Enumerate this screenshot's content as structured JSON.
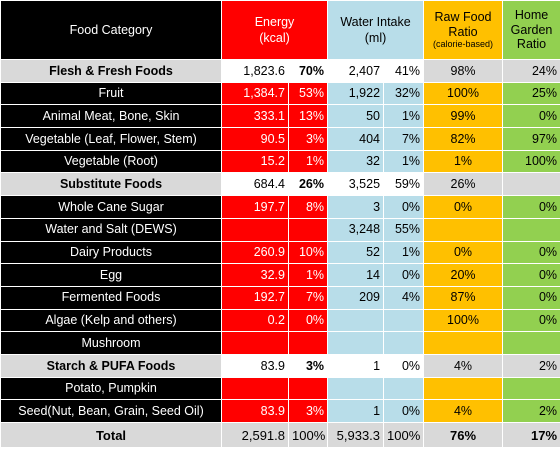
{
  "headers": {
    "category": "Food Category",
    "energy_line1": "Energy",
    "energy_line2": "(kcal)",
    "water_line1": "Water Intake",
    "water_line2": "(ml)",
    "raw_line1": "Raw Food",
    "raw_line2": "Ratio",
    "raw_line3": "(calorie-based)",
    "garden_line1": "Home",
    "garden_line2": "Garden",
    "garden_line3": "Ratio"
  },
  "rows": [
    {
      "type": "group",
      "name": "Flesh & Fresh Foods",
      "energy": "1,823.6",
      "energy_pct": "70%",
      "water": "2,407",
      "water_pct": "41%",
      "raw": "98%",
      "garden": "24%"
    },
    {
      "type": "item",
      "name": "Fruit",
      "energy": "1,384.7",
      "energy_pct": "53%",
      "water": "1,922",
      "water_pct": "32%",
      "raw": "100%",
      "garden": "25%"
    },
    {
      "type": "item",
      "name": "Animal Meat, Bone, Skin",
      "energy": "333.1",
      "energy_pct": "13%",
      "water": "50",
      "water_pct": "1%",
      "raw": "99%",
      "garden": "0%"
    },
    {
      "type": "item",
      "name": "Vegetable (Leaf, Flower, Stem)",
      "energy": "90.5",
      "energy_pct": "3%",
      "water": "404",
      "water_pct": "7%",
      "raw": "82%",
      "garden": "97%"
    },
    {
      "type": "item",
      "name": "Vegetable (Root)",
      "energy": "15.2",
      "energy_pct": "1%",
      "water": "32",
      "water_pct": "1%",
      "raw": "1%",
      "garden": "100%"
    },
    {
      "type": "group",
      "name": "Substitute Foods",
      "energy": "684.4",
      "energy_pct": "26%",
      "water": "3,525",
      "water_pct": "59%",
      "raw": "26%",
      "garden": ""
    },
    {
      "type": "item",
      "name": "Whole Cane Sugar",
      "energy": "197.7",
      "energy_pct": "8%",
      "water": "3",
      "water_pct": "0%",
      "raw": "0%",
      "garden": "0%"
    },
    {
      "type": "item",
      "name": "Water and Salt (DEWS)",
      "energy": "",
      "energy_pct": "",
      "water": "3,248",
      "water_pct": "55%",
      "raw": "",
      "garden": ""
    },
    {
      "type": "item",
      "name": "Dairy Products",
      "energy": "260.9",
      "energy_pct": "10%",
      "water": "52",
      "water_pct": "1%",
      "raw": "0%",
      "garden": "0%"
    },
    {
      "type": "item",
      "name": "Egg",
      "energy": "32.9",
      "energy_pct": "1%",
      "water": "14",
      "water_pct": "0%",
      "raw": "20%",
      "garden": "0%"
    },
    {
      "type": "item",
      "name": "Fermented Foods",
      "energy": "192.7",
      "energy_pct": "7%",
      "water": "209",
      "water_pct": "4%",
      "raw": "87%",
      "garden": "0%"
    },
    {
      "type": "item",
      "name": "Algae (Kelp and others)",
      "energy": "0.2",
      "energy_pct": "0%",
      "water": "",
      "water_pct": "",
      "raw": "100%",
      "garden": "0%"
    },
    {
      "type": "item",
      "name": "Mushroom",
      "energy": "",
      "energy_pct": "",
      "water": "",
      "water_pct": "",
      "raw": "",
      "garden": ""
    },
    {
      "type": "group",
      "name": "Starch & PUFA Foods",
      "energy": "83.9",
      "energy_pct": "3%",
      "water": "1",
      "water_pct": "0%",
      "raw": "4%",
      "garden": "2%"
    },
    {
      "type": "item",
      "name": "Potato, Pumpkin",
      "energy": "",
      "energy_pct": "",
      "water": "",
      "water_pct": "",
      "raw": "",
      "garden": ""
    },
    {
      "type": "item",
      "name": "Seed(Nut, Bean, Grain, Seed Oil)",
      "energy": "83.9",
      "energy_pct": "3%",
      "water": "1",
      "water_pct": "0%",
      "raw": "4%",
      "garden": "2%"
    }
  ],
  "total": {
    "name": "Total",
    "energy": "2,591.8",
    "energy_pct": "100%",
    "water": "5,933.3",
    "water_pct": "100%",
    "raw": "76%",
    "garden": "17%"
  },
  "colors": {
    "energy": "#ff0000",
    "water": "#b8dde9",
    "raw": "#ffc000",
    "garden": "#92d050",
    "category": "#000000",
    "group": "#d9d9d9"
  }
}
